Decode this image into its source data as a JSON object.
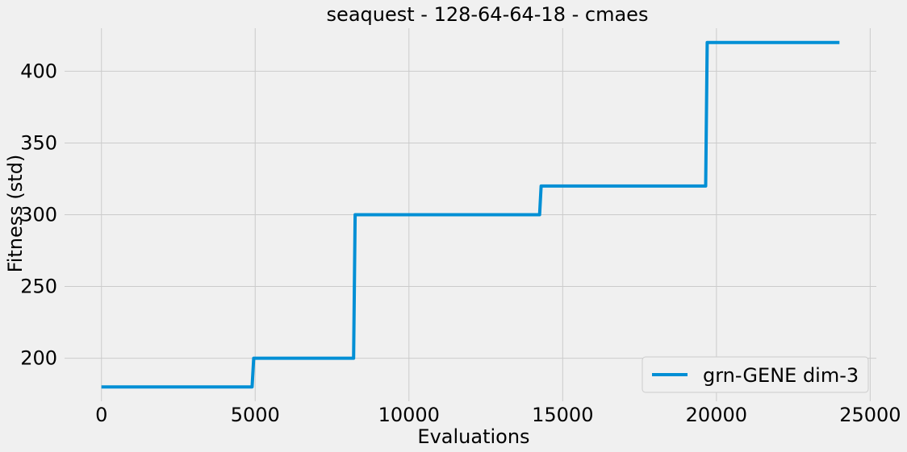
{
  "chart_data": {
    "type": "line",
    "title": "seaquest - 128-64-64-18 - cmaes",
    "xlabel": "Evaluations",
    "ylabel": "Fitness (std)",
    "xlim": [
      -1200,
      25200
    ],
    "ylim": [
      170,
      430
    ],
    "xticks": [
      0,
      5000,
      10000,
      15000,
      20000,
      25000
    ],
    "yticks": [
      200,
      250,
      300,
      350,
      400
    ],
    "grid": true,
    "legend_position": "lower-right",
    "series": [
      {
        "name": "grn-GENE dim-3",
        "color": "#008fd5",
        "x": [
          0,
          4900,
          4950,
          8200,
          8250,
          14250,
          14300,
          19650,
          19700,
          24000
        ],
        "y": [
          180,
          180,
          200,
          200,
          300,
          300,
          320,
          320,
          420,
          420
        ]
      }
    ]
  }
}
